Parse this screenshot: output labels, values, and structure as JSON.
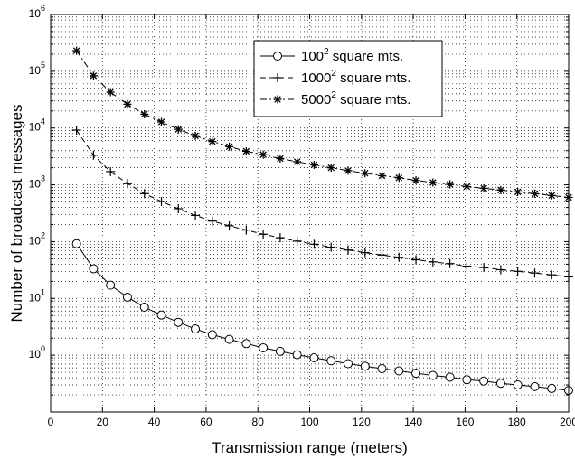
{
  "chart_data": {
    "type": "line",
    "xlabel": "Transmission range (meters)",
    "ylabel": "Number of broadcast messages",
    "xlim": [
      0,
      200
    ],
    "ylim": [
      0.1,
      1000000
    ],
    "yscale": "log",
    "grid": true,
    "legend_position": "top-right",
    "x_ticks": [
      "0",
      "20",
      "40",
      "60",
      "80",
      "100",
      "120",
      "140",
      "160",
      "180",
      "200"
    ],
    "y_ticks": [
      {
        "base": "10",
        "exp": "0"
      },
      {
        "base": "10",
        "exp": "1"
      },
      {
        "base": "10",
        "exp": "2"
      },
      {
        "base": "10",
        "exp": "3"
      },
      {
        "base": "10",
        "exp": "4"
      },
      {
        "base": "10",
        "exp": "5"
      },
      {
        "base": "10",
        "exp": "6"
      }
    ],
    "x": [
      10,
      16.55,
      23.1,
      29.66,
      36.21,
      42.76,
      49.31,
      55.86,
      62.41,
      68.97,
      75.52,
      82.07,
      88.62,
      95.17,
      101.72,
      108.28,
      114.83,
      121.38,
      127.93,
      134.48,
      141.03,
      147.59,
      154.14,
      160.69,
      167.24,
      173.79,
      180.34,
      186.9,
      193.45,
      200
    ],
    "series": [
      {
        "label_base": "100",
        "label_exp": "2",
        "label_rest": " square mts.",
        "marker": "circle",
        "dash": "solid",
        "values": [
          92,
          33.3,
          17.1,
          10.5,
          7.0,
          5.1,
          3.8,
          2.9,
          2.3,
          1.9,
          1.6,
          1.35,
          1.17,
          1.02,
          0.9,
          0.8,
          0.71,
          0.64,
          0.58,
          0.53,
          0.48,
          0.44,
          0.41,
          0.37,
          0.35,
          0.32,
          0.3,
          0.28,
          0.26,
          0.24
        ]
      },
      {
        "label_base": "1000",
        "label_exp": "2",
        "label_rest": " square mts.",
        "marker": "plus",
        "dash": "dashed",
        "values": [
          9200,
          3330,
          1710,
          1050,
          700,
          510,
          380,
          290,
          230,
          190,
          160,
          135,
          117,
          102,
          90,
          80,
          71,
          64,
          58,
          53,
          48,
          44,
          41,
          37,
          35,
          32,
          30,
          28,
          26,
          24
        ]
      },
      {
        "label_base": "5000",
        "label_exp": "2",
        "label_rest": " square mts.",
        "marker": "star",
        "dash": "dashdot",
        "values": [
          230000,
          83300,
          42800,
          26300,
          17500,
          12800,
          9500,
          7300,
          5800,
          4700,
          3900,
          3400,
          2900,
          2550,
          2250,
          2000,
          1780,
          1600,
          1450,
          1330,
          1200,
          1100,
          1020,
          930,
          870,
          810,
          750,
          700,
          650,
          600
        ]
      }
    ]
  }
}
